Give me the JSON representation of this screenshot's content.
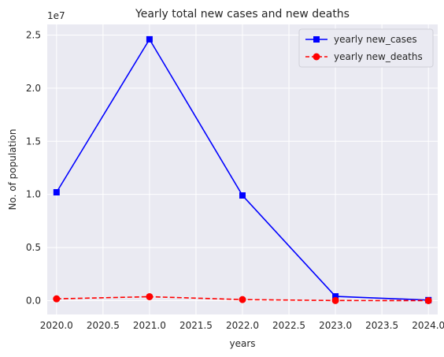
{
  "chart_data": {
    "type": "line",
    "title": "Yearly total new cases and new deaths",
    "xlabel": "years",
    "ylabel": "No. of population",
    "y_offset_text": "1e7",
    "xlim": [
      2019.9,
      2024.1
    ],
    "ylim": [
      -0.13,
      2.6
    ],
    "x_ticks": [
      2020.0,
      2020.5,
      2021.0,
      2021.5,
      2022.0,
      2022.5,
      2023.0,
      2023.5,
      2024.0
    ],
    "x_tick_labels": [
      "2020.0",
      "2020.5",
      "2021.0",
      "2021.5",
      "2022.0",
      "2022.5",
      "2023.0",
      "2023.5",
      "2024.0"
    ],
    "y_ticks": [
      0.0,
      0.5,
      1.0,
      1.5,
      2.0,
      2.5
    ],
    "y_tick_labels": [
      "0.0",
      "0.5",
      "1.0",
      "1.5",
      "2.0",
      "2.5"
    ],
    "x": [
      2020,
      2021,
      2022,
      2023,
      2024
    ],
    "grid": true,
    "legend_position": "top-right",
    "series": [
      {
        "name": "yearly new_cases",
        "values": [
          1.02,
          2.46,
          0.99,
          0.04,
          0.005
        ],
        "color": "#0000ff",
        "linestyle": "solid",
        "marker": "square"
      },
      {
        "name": "yearly new_deaths",
        "values": [
          0.017,
          0.037,
          0.01,
          0.001,
          0.0002
        ],
        "color": "#ff0000",
        "linestyle": "dashed",
        "marker": "circle"
      }
    ]
  }
}
